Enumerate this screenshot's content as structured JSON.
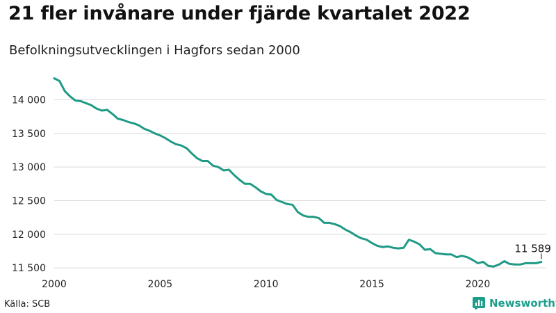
{
  "header": {
    "title": "21 fler invånare under fjärde kvartalet 2022",
    "subtitle": "Befolkningsutvecklingen i Hagfors sedan 2000"
  },
  "footer": {
    "source": "Källa: SCB",
    "brand": "Newsworthy"
  },
  "colors": {
    "line": "#1e9a85",
    "grid": "#d9d9d9",
    "brand": "#1d9e8b"
  },
  "chart_data": {
    "type": "line",
    "title": "21 fler invånare under fjärde kvartalet 2022",
    "subtitle": "Befolkningsutvecklingen i Hagfors sedan 2000",
    "xlabel": "",
    "ylabel": "",
    "xlim": [
      2000,
      2023.2
    ],
    "ylim": [
      11450,
      14450
    ],
    "x_ticks": [
      2000,
      2005,
      2010,
      2015,
      2020
    ],
    "x_tick_labels": [
      "2000",
      "2005",
      "2010",
      "2015",
      "2020"
    ],
    "y_ticks": [
      11500,
      12000,
      12500,
      13000,
      13500,
      14000
    ],
    "y_tick_labels": [
      "11 500",
      "12 000",
      "12 500",
      "13 000",
      "13 500",
      "14 000"
    ],
    "grid": "horizontal",
    "end_label": "11 589",
    "series": [
      {
        "x": [
          2000.0,
          2000.25,
          2000.5,
          2000.75,
          2001.0,
          2001.25,
          2001.5,
          2001.75,
          2002.0,
          2002.25,
          2002.5,
          2002.75,
          2003.0,
          2003.25,
          2003.5,
          2003.75,
          2004.0,
          2004.25,
          2004.5,
          2004.75,
          2005.0,
          2005.25,
          2005.5,
          2005.75,
          2006.0,
          2006.25,
          2006.5,
          2006.75,
          2007.0,
          2007.25,
          2007.5,
          2007.75,
          2008.0,
          2008.25,
          2008.5,
          2008.75,
          2009.0,
          2009.25,
          2009.5,
          2009.75,
          2010.0,
          2010.25,
          2010.5,
          2010.75,
          2011.0,
          2011.25,
          2011.5,
          2011.75,
          2012.0,
          2012.25,
          2012.5,
          2012.75,
          2013.0,
          2013.25,
          2013.5,
          2013.75,
          2014.0,
          2014.25,
          2014.5,
          2014.75,
          2015.0,
          2015.25,
          2015.5,
          2015.75,
          2016.0,
          2016.25,
          2016.5,
          2016.75,
          2017.0,
          2017.25,
          2017.5,
          2017.75,
          2018.0,
          2018.25,
          2018.5,
          2018.75,
          2019.0,
          2019.25,
          2019.5,
          2019.75,
          2020.0,
          2020.25,
          2020.5,
          2020.75,
          2021.0,
          2021.25,
          2021.5,
          2021.75,
          2022.0,
          2022.25,
          2022.5,
          2022.75,
          2023.0
        ],
        "values": [
          14320,
          14280,
          14130,
          14050,
          13990,
          13980,
          13950,
          13920,
          13870,
          13840,
          13850,
          13790,
          13720,
          13700,
          13670,
          13650,
          13620,
          13570,
          13540,
          13500,
          13470,
          13430,
          13380,
          13340,
          13320,
          13280,
          13200,
          13130,
          13090,
          13090,
          13020,
          13000,
          12950,
          12960,
          12880,
          12810,
          12750,
          12750,
          12700,
          12640,
          12600,
          12590,
          12510,
          12480,
          12450,
          12440,
          12330,
          12280,
          12260,
          12260,
          12240,
          12170,
          12170,
          12150,
          12120,
          12070,
          12030,
          11980,
          11940,
          11920,
          11870,
          11830,
          11810,
          11820,
          11800,
          11790,
          11800,
          11920,
          11890,
          11850,
          11770,
          11780,
          11720,
          11710,
          11700,
          11700,
          11660,
          11680,
          11660,
          11620,
          11570,
          11590,
          11530,
          11520,
          11550,
          11600,
          11560,
          11550,
          11550,
          11570,
          11570,
          11570,
          11590
        ]
      }
    ]
  }
}
